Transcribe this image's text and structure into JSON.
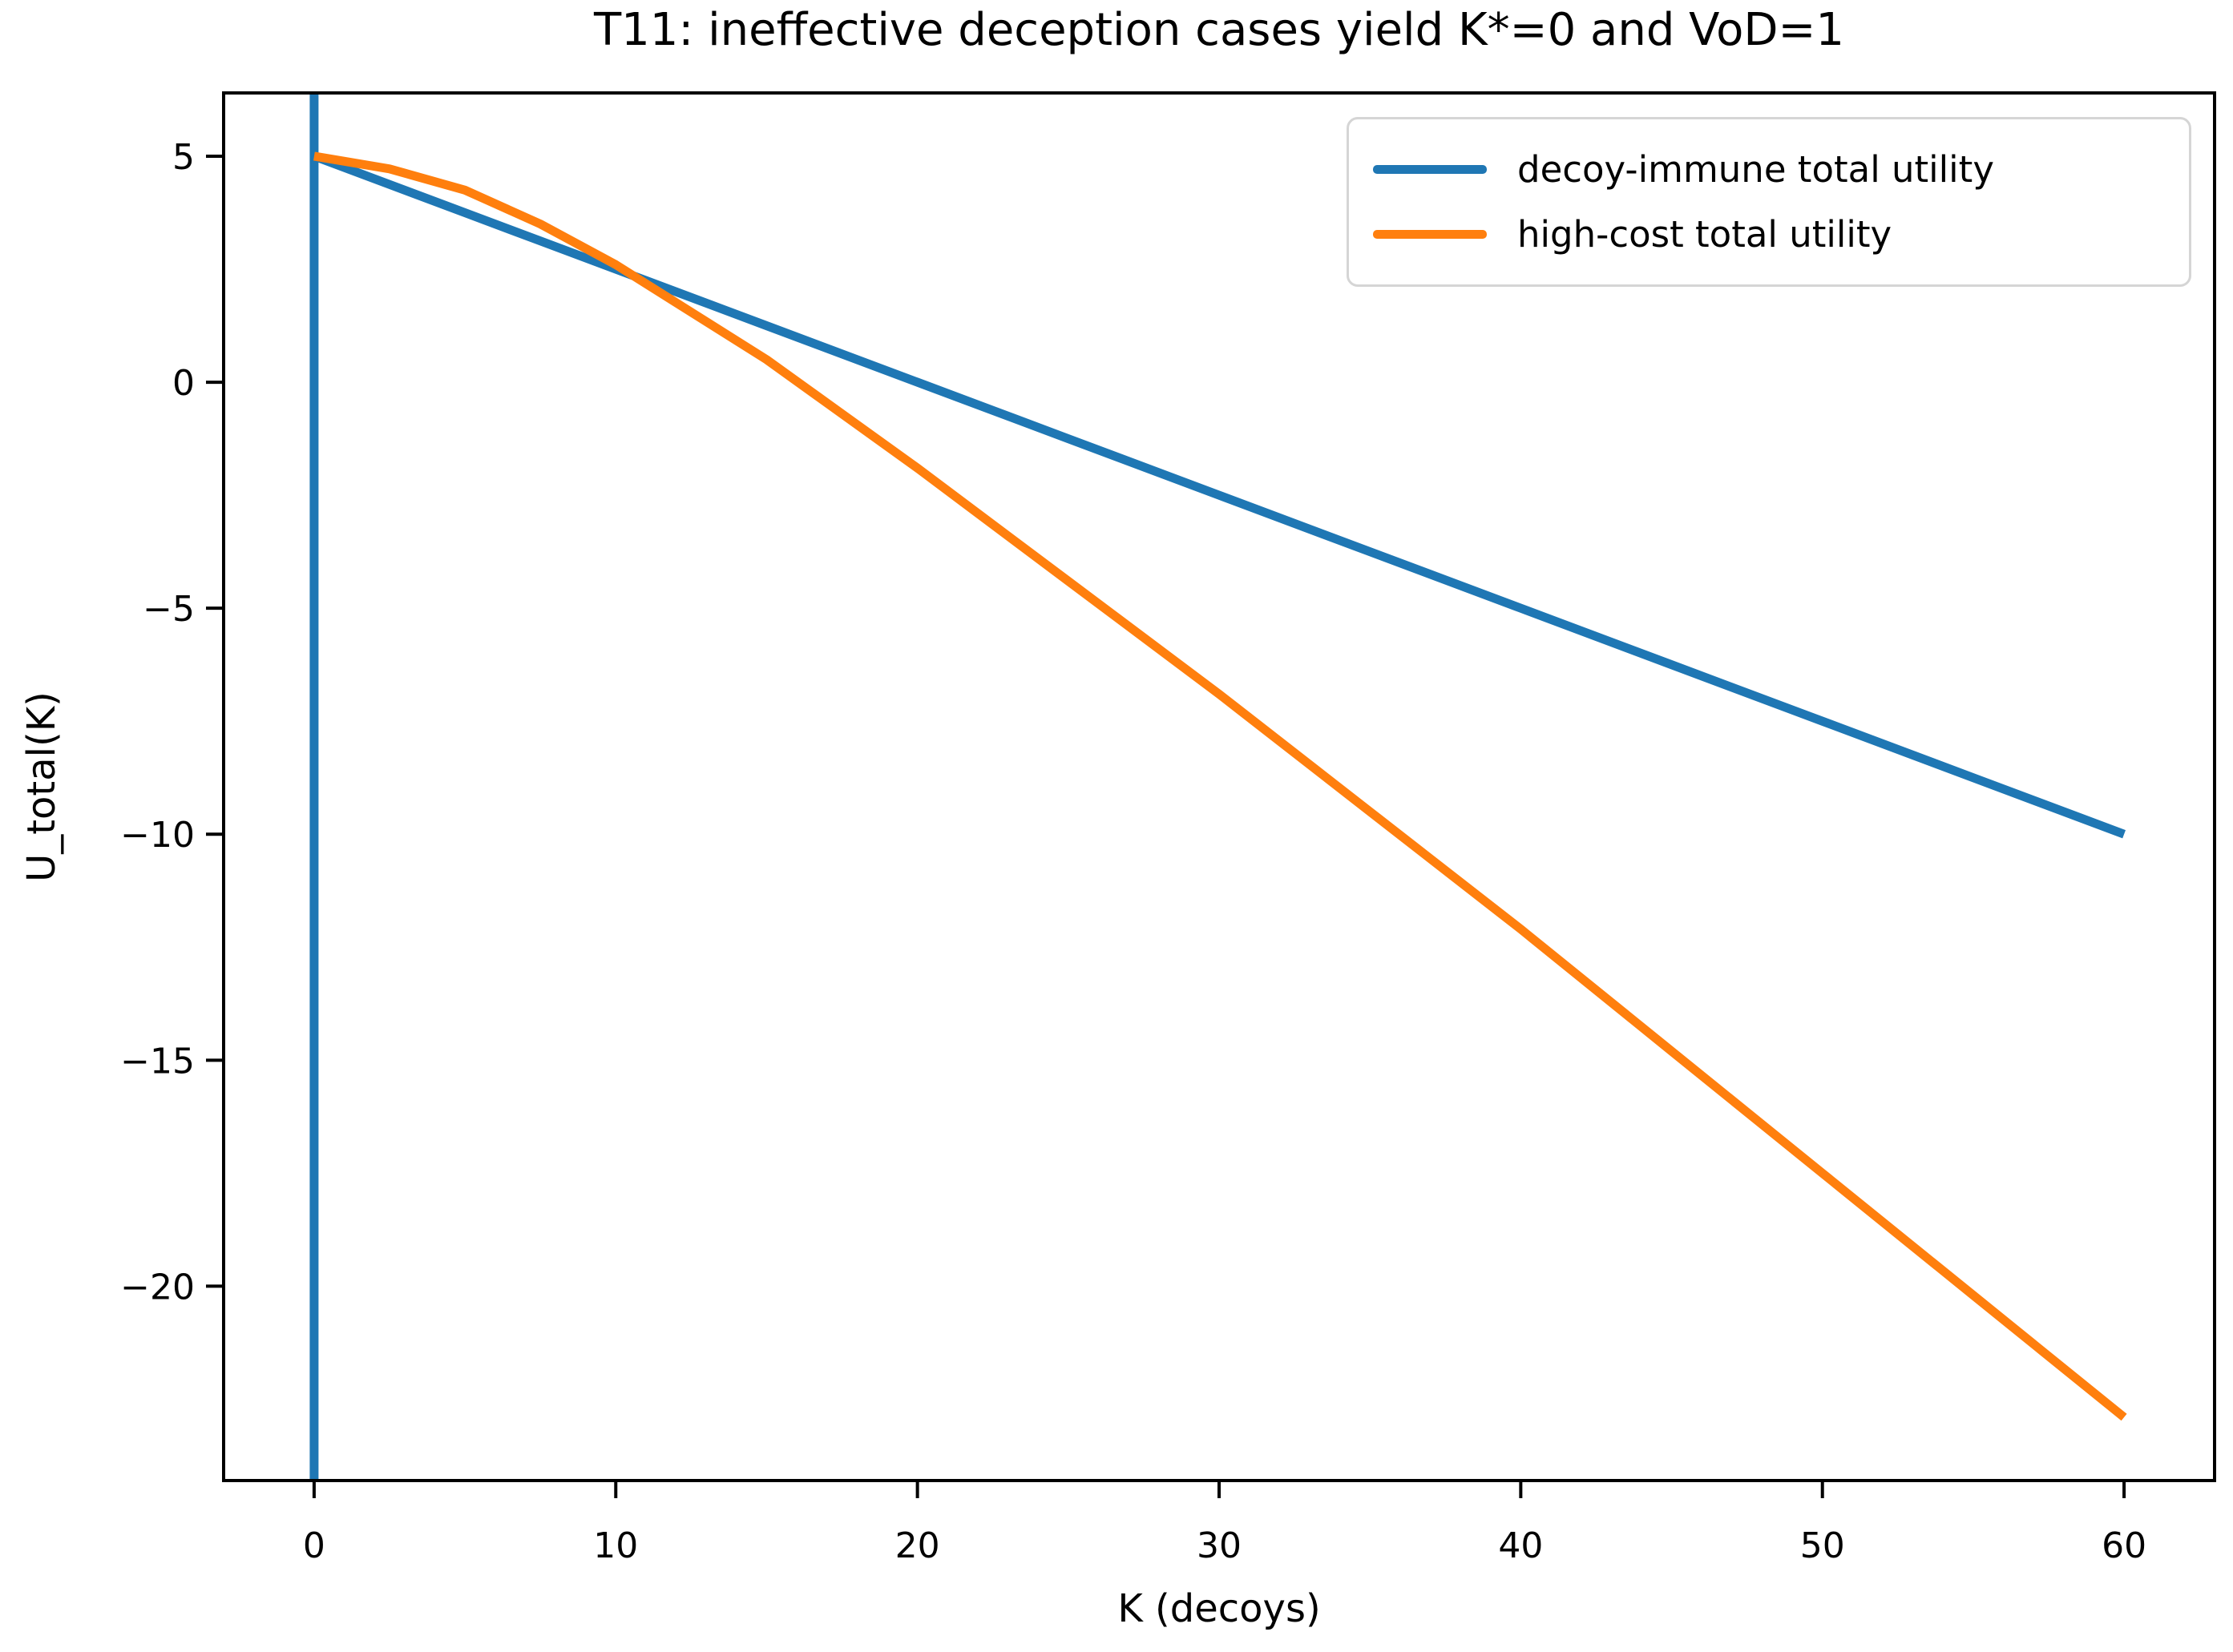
{
  "chart_data": {
    "type": "line",
    "title": "T11: ineffective deception cases yield K*=0 and VoD=1",
    "xlabel": "K (decoys)",
    "ylabel": "U_total(K)",
    "xlim": [
      -3,
      63
    ],
    "ylim": [
      -24.3,
      6.4
    ],
    "x_ticks": [
      0,
      10,
      20,
      30,
      40,
      50,
      60
    ],
    "y_ticks": [
      5,
      0,
      -5,
      -10,
      -15,
      -20
    ],
    "grid": false,
    "legend_position": "upper right",
    "axis_color": "#000000",
    "x": [
      0,
      2.5,
      5,
      7.5,
      10,
      15,
      20,
      25,
      30,
      35,
      40,
      45,
      50,
      55,
      60
    ],
    "series": [
      {
        "name": "decoy-immune total utility",
        "color": "#1f77b4",
        "values": [
          5,
          4.375,
          3.75,
          3.125,
          2.5,
          1.25,
          0,
          -1.25,
          -2.5,
          -3.75,
          -5,
          -6.25,
          -7.5,
          -8.75,
          -10
        ]
      },
      {
        "name": "high-cost total utility",
        "color": "#ff7f0e",
        "values": [
          5,
          4.72,
          4.25,
          3.5,
          2.6,
          0.5,
          -1.9,
          -4.4,
          -6.9,
          -9.5,
          -12.1,
          -14.8,
          -17.5,
          -20.2,
          -22.9
        ]
      }
    ],
    "vline": {
      "x": 0,
      "color": "#1f77b4"
    }
  }
}
